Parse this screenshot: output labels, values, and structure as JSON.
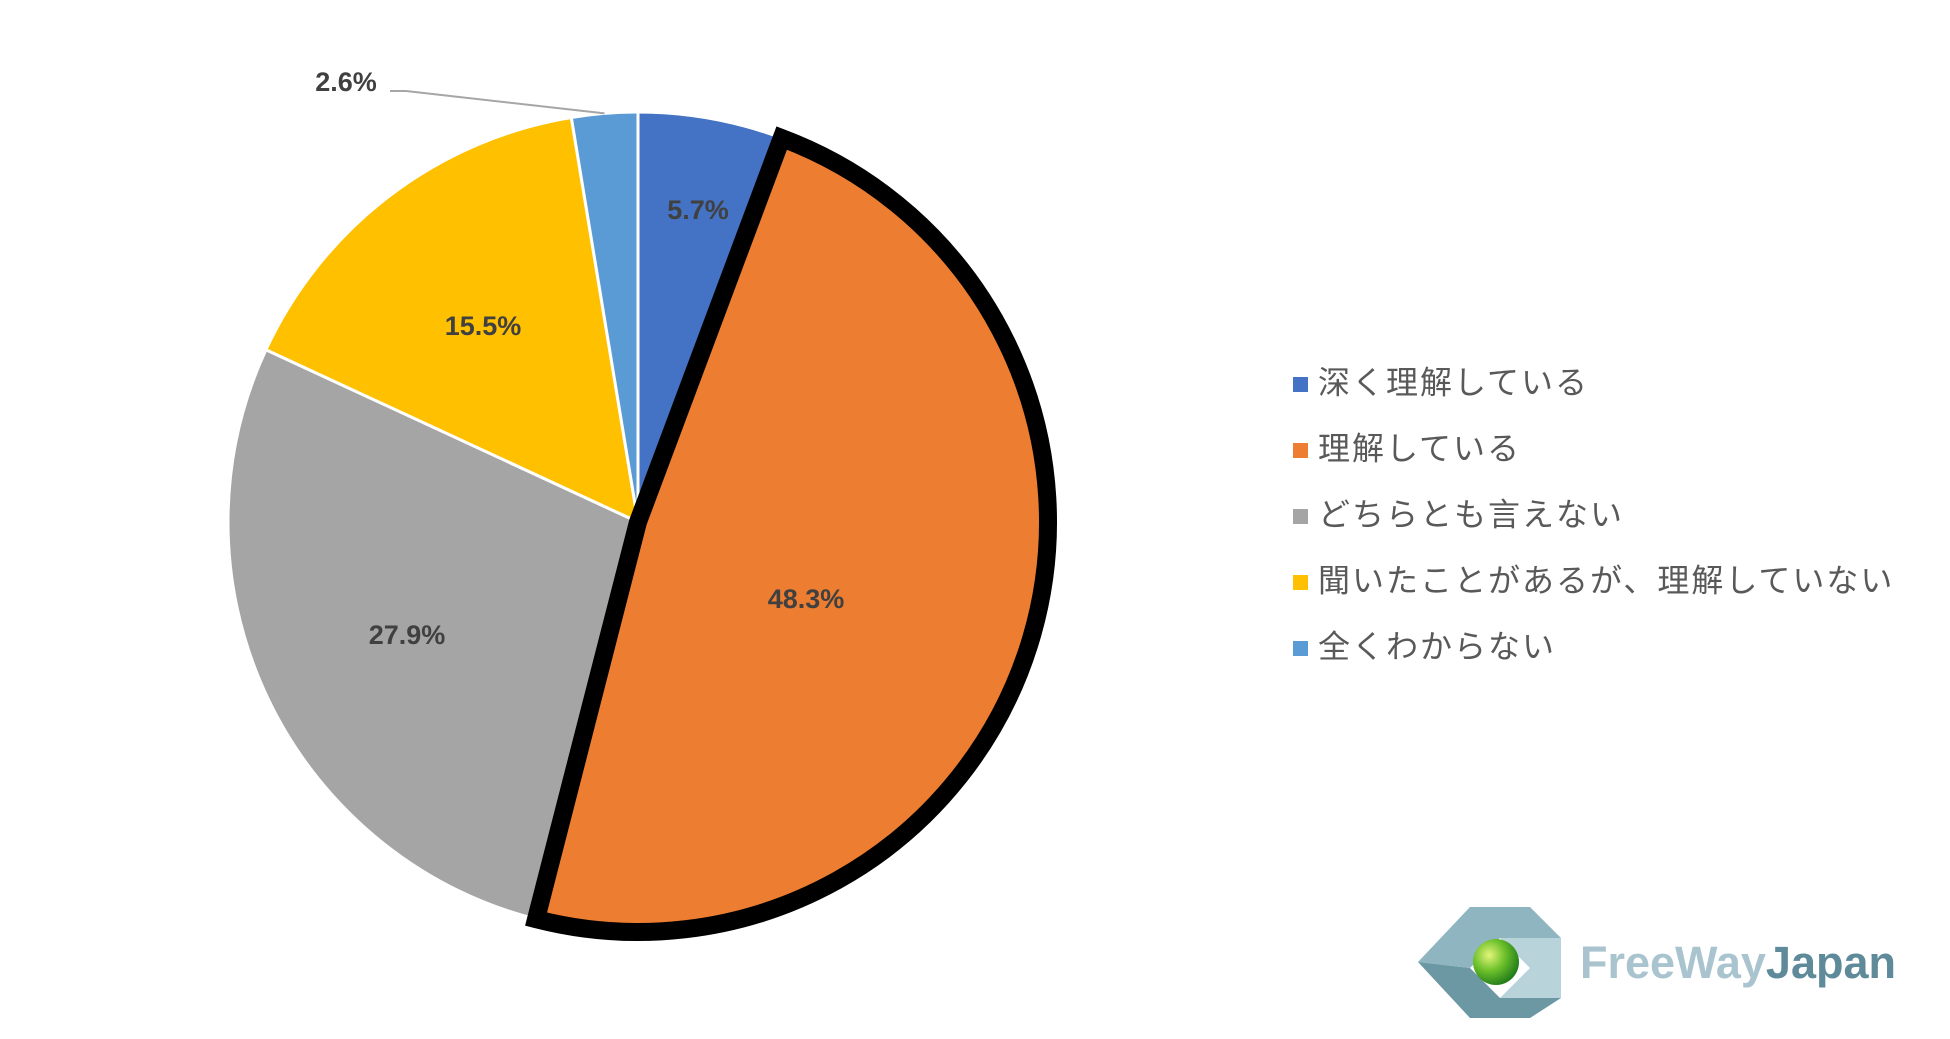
{
  "chart_data": {
    "type": "pie",
    "categories": [
      "深く理解している",
      "理解している",
      "どちらとも言えない",
      "聞いたことがあるが、理解していない",
      "全くわからない"
    ],
    "values": [
      5.7,
      48.3,
      27.9,
      15.5,
      2.6
    ],
    "value_labels": [
      "5.7%",
      "48.3%",
      "27.9%",
      "15.5%",
      "2.6%"
    ],
    "colors": [
      "#4472c4",
      "#ed7d31",
      "#a5a5a5",
      "#ffc000",
      "#5b9bd5"
    ],
    "highlight": 1,
    "legend": "right"
  },
  "logo": [
    "FreeWay",
    "Japan"
  ]
}
